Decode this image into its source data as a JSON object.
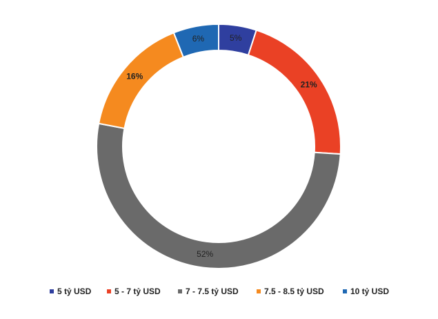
{
  "chart_data": {
    "type": "donut",
    "categories": [
      "5 tỷ USD",
      "5 - 7 tỷ USD",
      "7 - 7.5 tỷ USD",
      "7.5 - 8.5 tỷ USD",
      "10 tỷ USD"
    ],
    "values": [
      5,
      21,
      52,
      16,
      6
    ],
    "value_labels": [
      "5%",
      "21%",
      "52%",
      "16%",
      "6%"
    ],
    "colors": [
      "#2f3f9f",
      "#ea4125",
      "#6a6a6a",
      "#f58a1f",
      "#1f68b3"
    ],
    "legend": "bottom"
  }
}
